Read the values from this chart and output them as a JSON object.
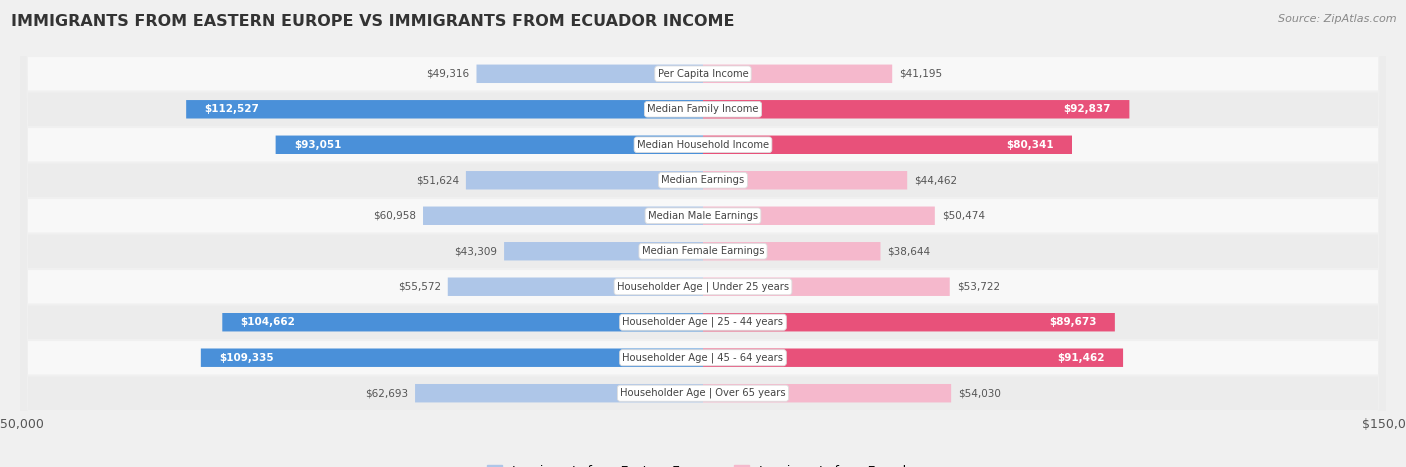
{
  "title": "IMMIGRANTS FROM EASTERN EUROPE VS IMMIGRANTS FROM ECUADOR INCOME",
  "source": "Source: ZipAtlas.com",
  "categories": [
    "Per Capita Income",
    "Median Family Income",
    "Median Household Income",
    "Median Earnings",
    "Median Male Earnings",
    "Median Female Earnings",
    "Householder Age | Under 25 years",
    "Householder Age | 25 - 44 years",
    "Householder Age | 45 - 64 years",
    "Householder Age | Over 65 years"
  ],
  "eastern_europe": [
    49316,
    112527,
    93051,
    51624,
    60958,
    43309,
    55572,
    104662,
    109335,
    62693
  ],
  "ecuador": [
    41195,
    92837,
    80341,
    44462,
    50474,
    38644,
    53722,
    89673,
    91462,
    54030
  ],
  "eastern_europe_labels": [
    "$49,316",
    "$112,527",
    "$93,051",
    "$51,624",
    "$60,958",
    "$43,309",
    "$55,572",
    "$104,662",
    "$109,335",
    "$62,693"
  ],
  "ecuador_labels": [
    "$41,195",
    "$92,837",
    "$80,341",
    "$44,462",
    "$50,474",
    "$38,644",
    "$53,722",
    "$89,673",
    "$91,462",
    "$54,030"
  ],
  "color_ee_light": "#aec6e8",
  "color_ee_dark": "#4a90d9",
  "color_ec_light": "#f5b8cc",
  "color_ec_dark": "#e8517a",
  "ee_large_threshold": 65000,
  "ec_large_threshold": 65000,
  "max_value": 150000,
  "legend_label_europe": "Immigrants from Eastern Europe",
  "legend_label_ecuador": "Immigrants from Ecuador",
  "background_color": "#f0f0f0",
  "row_bg_light": "#f8f8f8",
  "row_bg_dark": "#ececec"
}
